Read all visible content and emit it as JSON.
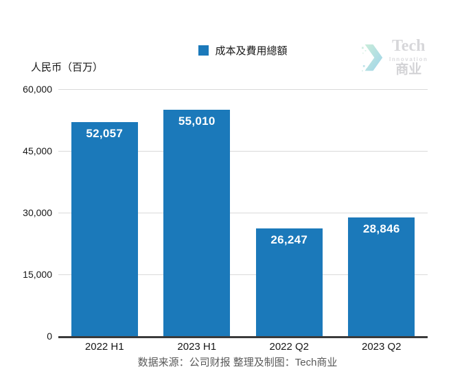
{
  "chart_data": {
    "type": "bar",
    "categories": [
      "2022 H1",
      "2023 H1",
      "2022 Q2",
      "2023 Q2"
    ],
    "values": [
      52057,
      55010,
      26247,
      28846
    ],
    "value_labels": [
      "52,057",
      "55,010",
      "26,247",
      "28,846"
    ],
    "series_name": "成本及費用總額",
    "title": "",
    "xlabel": "",
    "ylabel": "人民币（百万）",
    "ylim": [
      0,
      60000
    ],
    "yticks": [
      0,
      15000,
      30000,
      45000,
      60000
    ],
    "ytick_labels": [
      "0",
      "15,000",
      "30,000",
      "45,000",
      "60,000"
    ],
    "grid": "horizontal",
    "legend_position": "top-center",
    "bar_color": "#1b79ba"
  },
  "legend": {
    "label": "成本及費用總額"
  },
  "axes": {
    "y_title": "人民币（百万）"
  },
  "footer": {
    "text": "数据来源：公司财报 整理及制图：Tech商业"
  },
  "logo": {
    "line1": "Tech",
    "line2": "Innovation",
    "line3": "商业"
  },
  "colors": {
    "bar": "#1b79ba",
    "axis_line": "#3a3a3a",
    "gridline": "#d9d9d9",
    "text": "#161616",
    "footer_text": "#595959",
    "logo_text": "#d6d6d9",
    "logo_teal_start": "#c9ecd9",
    "logo_teal_end": "#9fd4ea",
    "background": "#ffffff"
  }
}
